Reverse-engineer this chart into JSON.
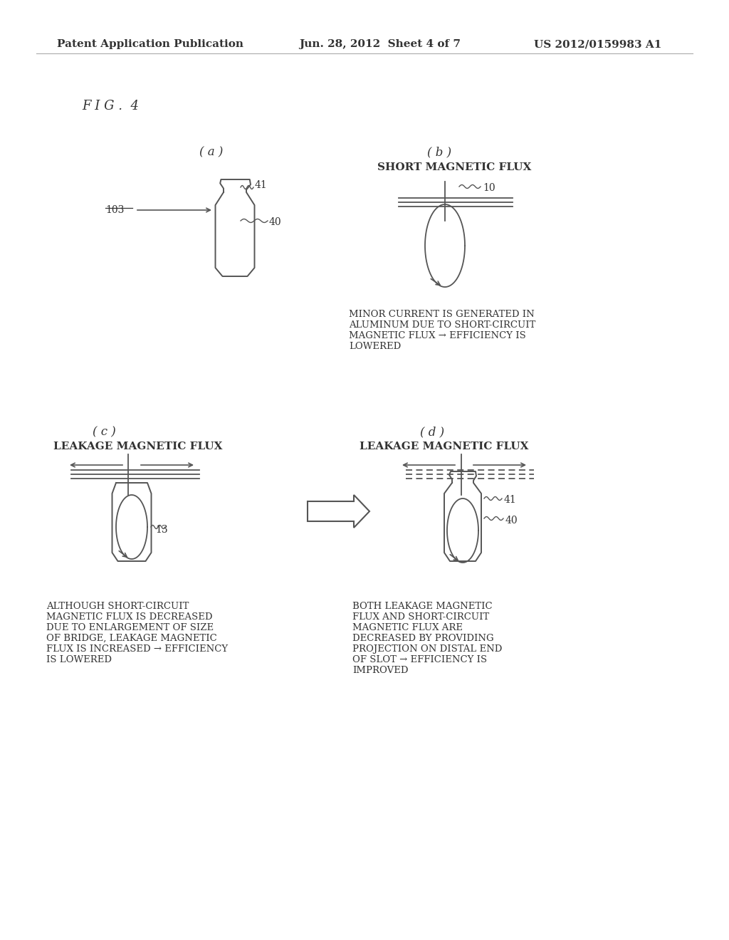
{
  "bg_color": "#ffffff",
  "header_left": "Patent Application Publication",
  "header_mid": "Jun. 28, 2012  Sheet 4 of 7",
  "header_right": "US 2012/0159983 A1",
  "fig_label": "F I G .  4",
  "panel_labels": [
    "( a )",
    "( b )",
    "( c )",
    "( d )"
  ],
  "panel_b_title": "SHORT MAGNETIC FLUX",
  "panel_c_title": "LEAKAGE MAGNETIC FLUX",
  "panel_d_title": "LEAKAGE MAGNETIC FLUX",
  "panel_b_caption": "MINOR CURRENT IS GENERATED IN\nALUMINUM DUE TO SHORT-CIRCUIT\nMAGNETIC FLUX → EFFICIENCY IS\nLOWERED",
  "panel_c_caption": "ALTHOUGH SHORT-CIRCUIT\nMAGNETIC FLUX IS DECREASED\nDUE TO ENLARGEMENT OF SIZE\nOF BRIDGE, LEAKAGE MAGNETIC\nFLUX IS INCREASED → EFFICIENCY\nIS LOWERED",
  "panel_d_caption": "BOTH LEAKAGE MAGNETIC\nFLUX AND SHORT-CIRCUIT\nMAGNETIC FLUX ARE\nDECREASED BY PROVIDING\nPROJECTION ON DISTAL END\nOF SLOT → EFFICIENCY IS\nIMPROVED",
  "text_color": "#333333",
  "line_color": "#555555"
}
